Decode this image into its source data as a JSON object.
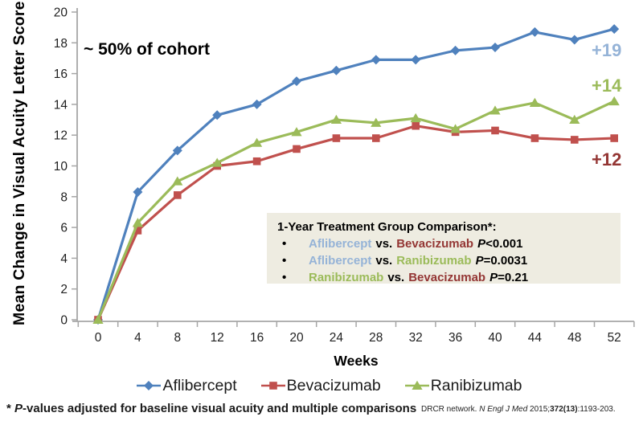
{
  "chart": {
    "y_axis_title": "Mean Change in Visual Acuity Letter Score",
    "x_axis_title": "Weeks",
    "cohort_note": "~ 50% of cohort",
    "axis_color": "#A6A6A6",
    "tick_label_color": "#1f1f1f",
    "background_color": "#ffffff"
  },
  "chart_data": {
    "type": "line",
    "title": "",
    "xlabel": "Weeks",
    "ylabel": "Mean Change in Visual Acuity Letter Score",
    "x": [
      0,
      4,
      8,
      12,
      16,
      20,
      24,
      28,
      32,
      36,
      40,
      44,
      48,
      52
    ],
    "ylim": [
      0,
      20
    ],
    "ytick_step": 2,
    "grid": false,
    "legend_position": "bottom",
    "annotation": "~ 50% of cohort",
    "series": [
      {
        "name": "Aflibercept",
        "color": "#4F81BD",
        "marker": "diamond",
        "values": [
          0,
          8.3,
          11.0,
          13.3,
          14.0,
          15.5,
          16.2,
          16.9,
          16.9,
          17.5,
          17.7,
          18.7,
          18.2,
          18.9
        ],
        "end_label": "+19",
        "end_label_color": "#95B3D7"
      },
      {
        "name": "Bevacizumab",
        "color": "#C0504D",
        "marker": "square",
        "values": [
          0,
          5.8,
          8.1,
          10.0,
          10.3,
          11.1,
          11.8,
          11.8,
          12.6,
          12.2,
          12.3,
          11.8,
          11.7,
          11.8
        ],
        "end_label": "+12",
        "end_label_color": "#943634"
      },
      {
        "name": "Ranibizumab",
        "color": "#9BBB59",
        "marker": "triangle",
        "values": [
          0,
          6.3,
          9.0,
          10.2,
          11.5,
          12.2,
          13.0,
          12.8,
          13.1,
          12.4,
          13.6,
          14.1,
          13.0,
          14.2
        ],
        "end_label": "+14",
        "end_label_color": "#9BBB59"
      }
    ]
  },
  "comparison_box": {
    "title": "1-Year Treatment Group Comparison*:",
    "bullet": "•",
    "background": "#EEECE1",
    "rows": [
      {
        "drug_a": "Aflibercept",
        "drug_a_color": "#95B3D7",
        "vs": "vs.",
        "drug_b": "Bevacizumab",
        "drug_b_color": "#943634",
        "p_symbol": "P",
        "p_value": "<0.001"
      },
      {
        "drug_a": "Aflibercept",
        "drug_a_color": "#95B3D7",
        "vs": "vs.",
        "drug_b": "Ranibizumab",
        "drug_b_color": "#9BBB59",
        "p_symbol": "P",
        "p_value": "=0.0031"
      },
      {
        "drug_a": "Ranibizumab",
        "drug_a_color": "#9BBB59",
        "vs": "vs.",
        "drug_b": "Bevacizumab",
        "drug_b_color": "#943634",
        "p_symbol": "P",
        "p_value": "=0.21"
      }
    ]
  },
  "footnote": {
    "prefix": "* ",
    "p_symbol": "P",
    "text": "-values adjusted for baseline visual acuity and multiple comparisons"
  },
  "citation": {
    "part1": "DRCR network. ",
    "journal": "N Engl J Med",
    "part2": " 2015;",
    "volume": "372(13)",
    "part3": ":1193-203."
  }
}
